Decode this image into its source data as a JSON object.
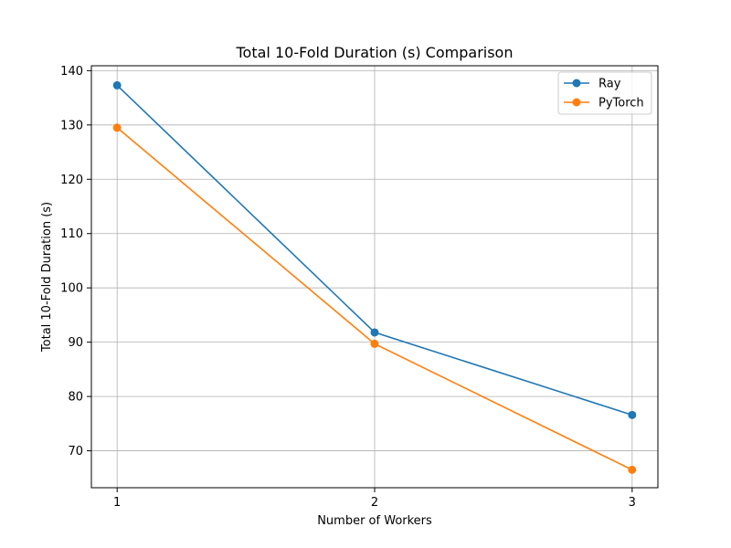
{
  "chart_data": {
    "type": "line",
    "title": "Total 10-Fold Duration (s) Comparison",
    "xlabel": "Number of Workers",
    "ylabel": "Total 10-Fold Duration (s)",
    "x": [
      1,
      2,
      3
    ],
    "x_ticks": [
      "1",
      "2",
      "3"
    ],
    "xlim": [
      0.9,
      3.1
    ],
    "ylim": [
      63.2,
      140.9
    ],
    "y_ticks": [
      70,
      80,
      90,
      100,
      110,
      120,
      130,
      140
    ],
    "y_tick_labels": [
      "70",
      "80",
      "90",
      "100",
      "110",
      "120",
      "130",
      "140"
    ],
    "grid": true,
    "legend_position": "top-right",
    "series": [
      {
        "name": "Ray",
        "color": "#1f77b4",
        "values": [
          137.3,
          91.8,
          76.6
        ]
      },
      {
        "name": "PyTorch",
        "color": "#ff7f0e",
        "values": [
          129.5,
          89.7,
          66.5
        ]
      }
    ]
  }
}
